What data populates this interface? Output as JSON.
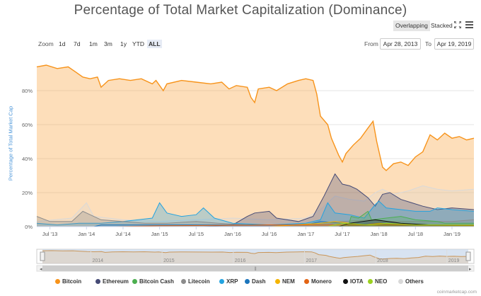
{
  "header": {
    "title": "Percentage of Total Market Capitalization (Dominance)",
    "overlapping_label": "Overlapping",
    "stacked_label": "Stacked",
    "fullscreen_icon": "expand-icon",
    "menu_icon": "hamburger-menu-icon"
  },
  "zoom": {
    "label": "Zoom",
    "buttons": [
      "1d",
      "7d",
      "1m",
      "3m",
      "1y",
      "YTD",
      "ALL"
    ],
    "active": "ALL"
  },
  "range": {
    "from_label": "From",
    "from_value": "Apr 28, 2013",
    "to_label": "To",
    "to_value": "Apr 19, 2019"
  },
  "navigator_years": [
    "2014",
    "2015",
    "2016",
    "2017",
    "2018",
    "2019"
  ],
  "credit": "coinmarketcap.com",
  "colors": {
    "Bitcoin": "#f7931a",
    "Ethereum": "#454a75",
    "Bitcoin Cash": "#4caf50",
    "Litecoin": "#8c8c8c",
    "XRP": "#23a3e0",
    "Dash": "#1c75bc",
    "NEM": "#f4b400",
    "Monero": "#e36414",
    "IOTA": "#111111",
    "NEO": "#9bd11f",
    "Others": "#d9d9d9"
  },
  "chart_data": {
    "type": "area",
    "title": "Percentage of Total Market Capitalization (Dominance)",
    "xlabel": "",
    "ylabel": "Percentage of Total Market Cap",
    "ylim": [
      0,
      100
    ],
    "yticks": [
      "0%",
      "20%",
      "40%",
      "60%",
      "80%"
    ],
    "ytick_values": [
      0,
      20,
      40,
      60,
      80
    ],
    "xticks": [
      "Jul '13",
      "Jan '14",
      "Jul '14",
      "Jan '15",
      "Jul '15",
      "Jan '16",
      "Jul '16",
      "Jan '17",
      "Jul '17",
      "Jan '18",
      "Jul '18",
      "Jan '19"
    ],
    "xtick_values": [
      2013.5,
      2014.0,
      2014.5,
      2015.0,
      2015.5,
      2016.0,
      2016.5,
      2017.0,
      2017.5,
      2018.0,
      2018.5,
      2019.0
    ],
    "xlim": [
      2013.32,
      2019.3
    ],
    "grid": true,
    "legend_position": "bottom",
    "series": [
      {
        "name": "Bitcoin",
        "points": [
          [
            2013.32,
            94
          ],
          [
            2013.45,
            95
          ],
          [
            2013.6,
            93
          ],
          [
            2013.75,
            94
          ],
          [
            2013.85,
            91
          ],
          [
            2013.95,
            88
          ],
          [
            2014.05,
            87
          ],
          [
            2014.15,
            88
          ],
          [
            2014.2,
            82
          ],
          [
            2014.3,
            86
          ],
          [
            2014.45,
            87
          ],
          [
            2014.6,
            86
          ],
          [
            2014.75,
            87
          ],
          [
            2014.9,
            84
          ],
          [
            2014.95,
            86
          ],
          [
            2015.05,
            80
          ],
          [
            2015.1,
            84
          ],
          [
            2015.3,
            86
          ],
          [
            2015.5,
            85
          ],
          [
            2015.7,
            84
          ],
          [
            2015.85,
            85
          ],
          [
            2015.95,
            81
          ],
          [
            2016.05,
            83
          ],
          [
            2016.2,
            82
          ],
          [
            2016.25,
            76
          ],
          [
            2016.3,
            73
          ],
          [
            2016.35,
            81
          ],
          [
            2016.5,
            82
          ],
          [
            2016.6,
            80
          ],
          [
            2016.75,
            84
          ],
          [
            2016.9,
            86
          ],
          [
            2017.0,
            87
          ],
          [
            2017.1,
            86
          ],
          [
            2017.15,
            78
          ],
          [
            2017.2,
            65
          ],
          [
            2017.3,
            60
          ],
          [
            2017.35,
            52
          ],
          [
            2017.45,
            42
          ],
          [
            2017.5,
            38
          ],
          [
            2017.55,
            43
          ],
          [
            2017.65,
            48
          ],
          [
            2017.75,
            52
          ],
          [
            2017.85,
            58
          ],
          [
            2017.92,
            62
          ],
          [
            2017.97,
            50
          ],
          [
            2018.05,
            35
          ],
          [
            2018.1,
            33
          ],
          [
            2018.2,
            37
          ],
          [
            2018.3,
            38
          ],
          [
            2018.4,
            36
          ],
          [
            2018.5,
            41
          ],
          [
            2018.6,
            44
          ],
          [
            2018.7,
            54
          ],
          [
            2018.8,
            51
          ],
          [
            2018.9,
            55
          ],
          [
            2019.0,
            52
          ],
          [
            2019.1,
            53
          ],
          [
            2019.2,
            51
          ],
          [
            2019.3,
            52
          ]
        ]
      },
      {
        "name": "Ethereum",
        "points": [
          [
            2015.6,
            0
          ],
          [
            2016.0,
            1
          ],
          [
            2016.2,
            6
          ],
          [
            2016.3,
            8
          ],
          [
            2016.5,
            9
          ],
          [
            2016.6,
            5
          ],
          [
            2016.9,
            3
          ],
          [
            2017.1,
            6
          ],
          [
            2017.25,
            18
          ],
          [
            2017.4,
            31
          ],
          [
            2017.5,
            25
          ],
          [
            2017.6,
            24
          ],
          [
            2017.7,
            22
          ],
          [
            2017.85,
            17
          ],
          [
            2017.95,
            12
          ],
          [
            2018.05,
            19
          ],
          [
            2018.15,
            20
          ],
          [
            2018.3,
            16
          ],
          [
            2018.45,
            14
          ],
          [
            2018.6,
            12
          ],
          [
            2018.8,
            10
          ],
          [
            2019.0,
            11
          ],
          [
            2019.3,
            10
          ]
        ]
      },
      {
        "name": "Bitcoin Cash",
        "points": [
          [
            2017.58,
            0
          ],
          [
            2017.62,
            6
          ],
          [
            2017.72,
            5
          ],
          [
            2017.85,
            9
          ],
          [
            2017.9,
            4
          ],
          [
            2018.1,
            5
          ],
          [
            2018.3,
            6
          ],
          [
            2018.5,
            4
          ],
          [
            2018.8,
            3
          ],
          [
            2018.9,
            2
          ],
          [
            2019.3,
            2
          ]
        ]
      },
      {
        "name": "Litecoin",
        "points": [
          [
            2013.32,
            6
          ],
          [
            2013.5,
            3
          ],
          [
            2013.8,
            3
          ],
          [
            2013.95,
            9
          ],
          [
            2014.05,
            7
          ],
          [
            2014.2,
            4
          ],
          [
            2014.5,
            3
          ],
          [
            2014.8,
            2
          ],
          [
            2015.1,
            2
          ],
          [
            2015.5,
            3
          ],
          [
            2015.8,
            2
          ],
          [
            2016.2,
            1
          ],
          [
            2016.8,
            1
          ],
          [
            2017.2,
            2
          ],
          [
            2017.5,
            3
          ],
          [
            2017.9,
            4
          ],
          [
            2018.1,
            3
          ],
          [
            2018.5,
            3
          ],
          [
            2019.0,
            3
          ],
          [
            2019.3,
            4
          ]
        ]
      },
      {
        "name": "XRP",
        "points": [
          [
            2013.32,
            2
          ],
          [
            2013.6,
            1
          ],
          [
            2013.9,
            2
          ],
          [
            2014.2,
            2
          ],
          [
            2014.5,
            3
          ],
          [
            2014.7,
            4
          ],
          [
            2014.9,
            5
          ],
          [
            2015.0,
            14
          ],
          [
            2015.1,
            8
          ],
          [
            2015.3,
            6
          ],
          [
            2015.5,
            7
          ],
          [
            2015.6,
            11
          ],
          [
            2015.75,
            5
          ],
          [
            2016.0,
            2
          ],
          [
            2016.5,
            1
          ],
          [
            2017.0,
            2
          ],
          [
            2017.2,
            4
          ],
          [
            2017.3,
            14
          ],
          [
            2017.4,
            8
          ],
          [
            2017.6,
            7
          ],
          [
            2017.8,
            5
          ],
          [
            2017.95,
            13
          ],
          [
            2018.0,
            15
          ],
          [
            2018.1,
            11
          ],
          [
            2018.3,
            10
          ],
          [
            2018.5,
            9
          ],
          [
            2018.7,
            9
          ],
          [
            2018.8,
            11
          ],
          [
            2019.0,
            10
          ],
          [
            2019.3,
            9
          ]
        ]
      },
      {
        "name": "Dash",
        "points": [
          [
            2013.32,
            0
          ],
          [
            2014.1,
            0
          ],
          [
            2014.2,
            1
          ],
          [
            2015.0,
            1
          ],
          [
            2016.0,
            1
          ],
          [
            2016.5,
            1
          ],
          [
            2017.0,
            1
          ],
          [
            2017.2,
            3
          ],
          [
            2017.5,
            2
          ],
          [
            2018.0,
            1
          ],
          [
            2018.5,
            1
          ],
          [
            2019.3,
            1
          ]
        ]
      },
      {
        "name": "NEM",
        "points": [
          [
            2015.3,
            0
          ],
          [
            2016.5,
            0
          ],
          [
            2017.2,
            2
          ],
          [
            2017.4,
            3
          ],
          [
            2017.8,
            1
          ],
          [
            2018.0,
            2
          ],
          [
            2018.5,
            1
          ],
          [
            2019.3,
            0.5
          ]
        ]
      },
      {
        "name": "Monero",
        "points": [
          [
            2014.4,
            0
          ],
          [
            2015.0,
            0.5
          ],
          [
            2016.5,
            1
          ],
          [
            2017.0,
            1
          ],
          [
            2017.8,
            1
          ],
          [
            2018.5,
            1
          ],
          [
            2019.3,
            1
          ]
        ]
      },
      {
        "name": "IOTA",
        "points": [
          [
            2017.45,
            0
          ],
          [
            2017.6,
            2
          ],
          [
            2017.95,
            4
          ],
          [
            2018.3,
            2
          ],
          [
            2018.7,
            1
          ],
          [
            2019.3,
            1
          ]
        ]
      },
      {
        "name": "NEO",
        "points": [
          [
            2016.5,
            0
          ],
          [
            2017.3,
            0
          ],
          [
            2017.5,
            2
          ],
          [
            2017.9,
            1
          ],
          [
            2018.1,
            2
          ],
          [
            2018.5,
            1
          ],
          [
            2019.3,
            1
          ]
        ]
      },
      {
        "name": "Others",
        "points": [
          [
            2013.32,
            3
          ],
          [
            2013.8,
            5
          ],
          [
            2014.0,
            14
          ],
          [
            2014.1,
            6
          ],
          [
            2014.5,
            4
          ],
          [
            2015.0,
            3
          ],
          [
            2015.5,
            4
          ],
          [
            2016.0,
            5
          ],
          [
            2016.5,
            4
          ],
          [
            2017.0,
            5
          ],
          [
            2017.2,
            10
          ],
          [
            2017.4,
            18
          ],
          [
            2017.6,
            16
          ],
          [
            2017.8,
            15
          ],
          [
            2017.95,
            20
          ],
          [
            2018.05,
            22
          ],
          [
            2018.2,
            19
          ],
          [
            2018.4,
            21
          ],
          [
            2018.6,
            24
          ],
          [
            2018.8,
            22
          ],
          [
            2019.0,
            21
          ],
          [
            2019.3,
            22
          ]
        ]
      }
    ]
  }
}
